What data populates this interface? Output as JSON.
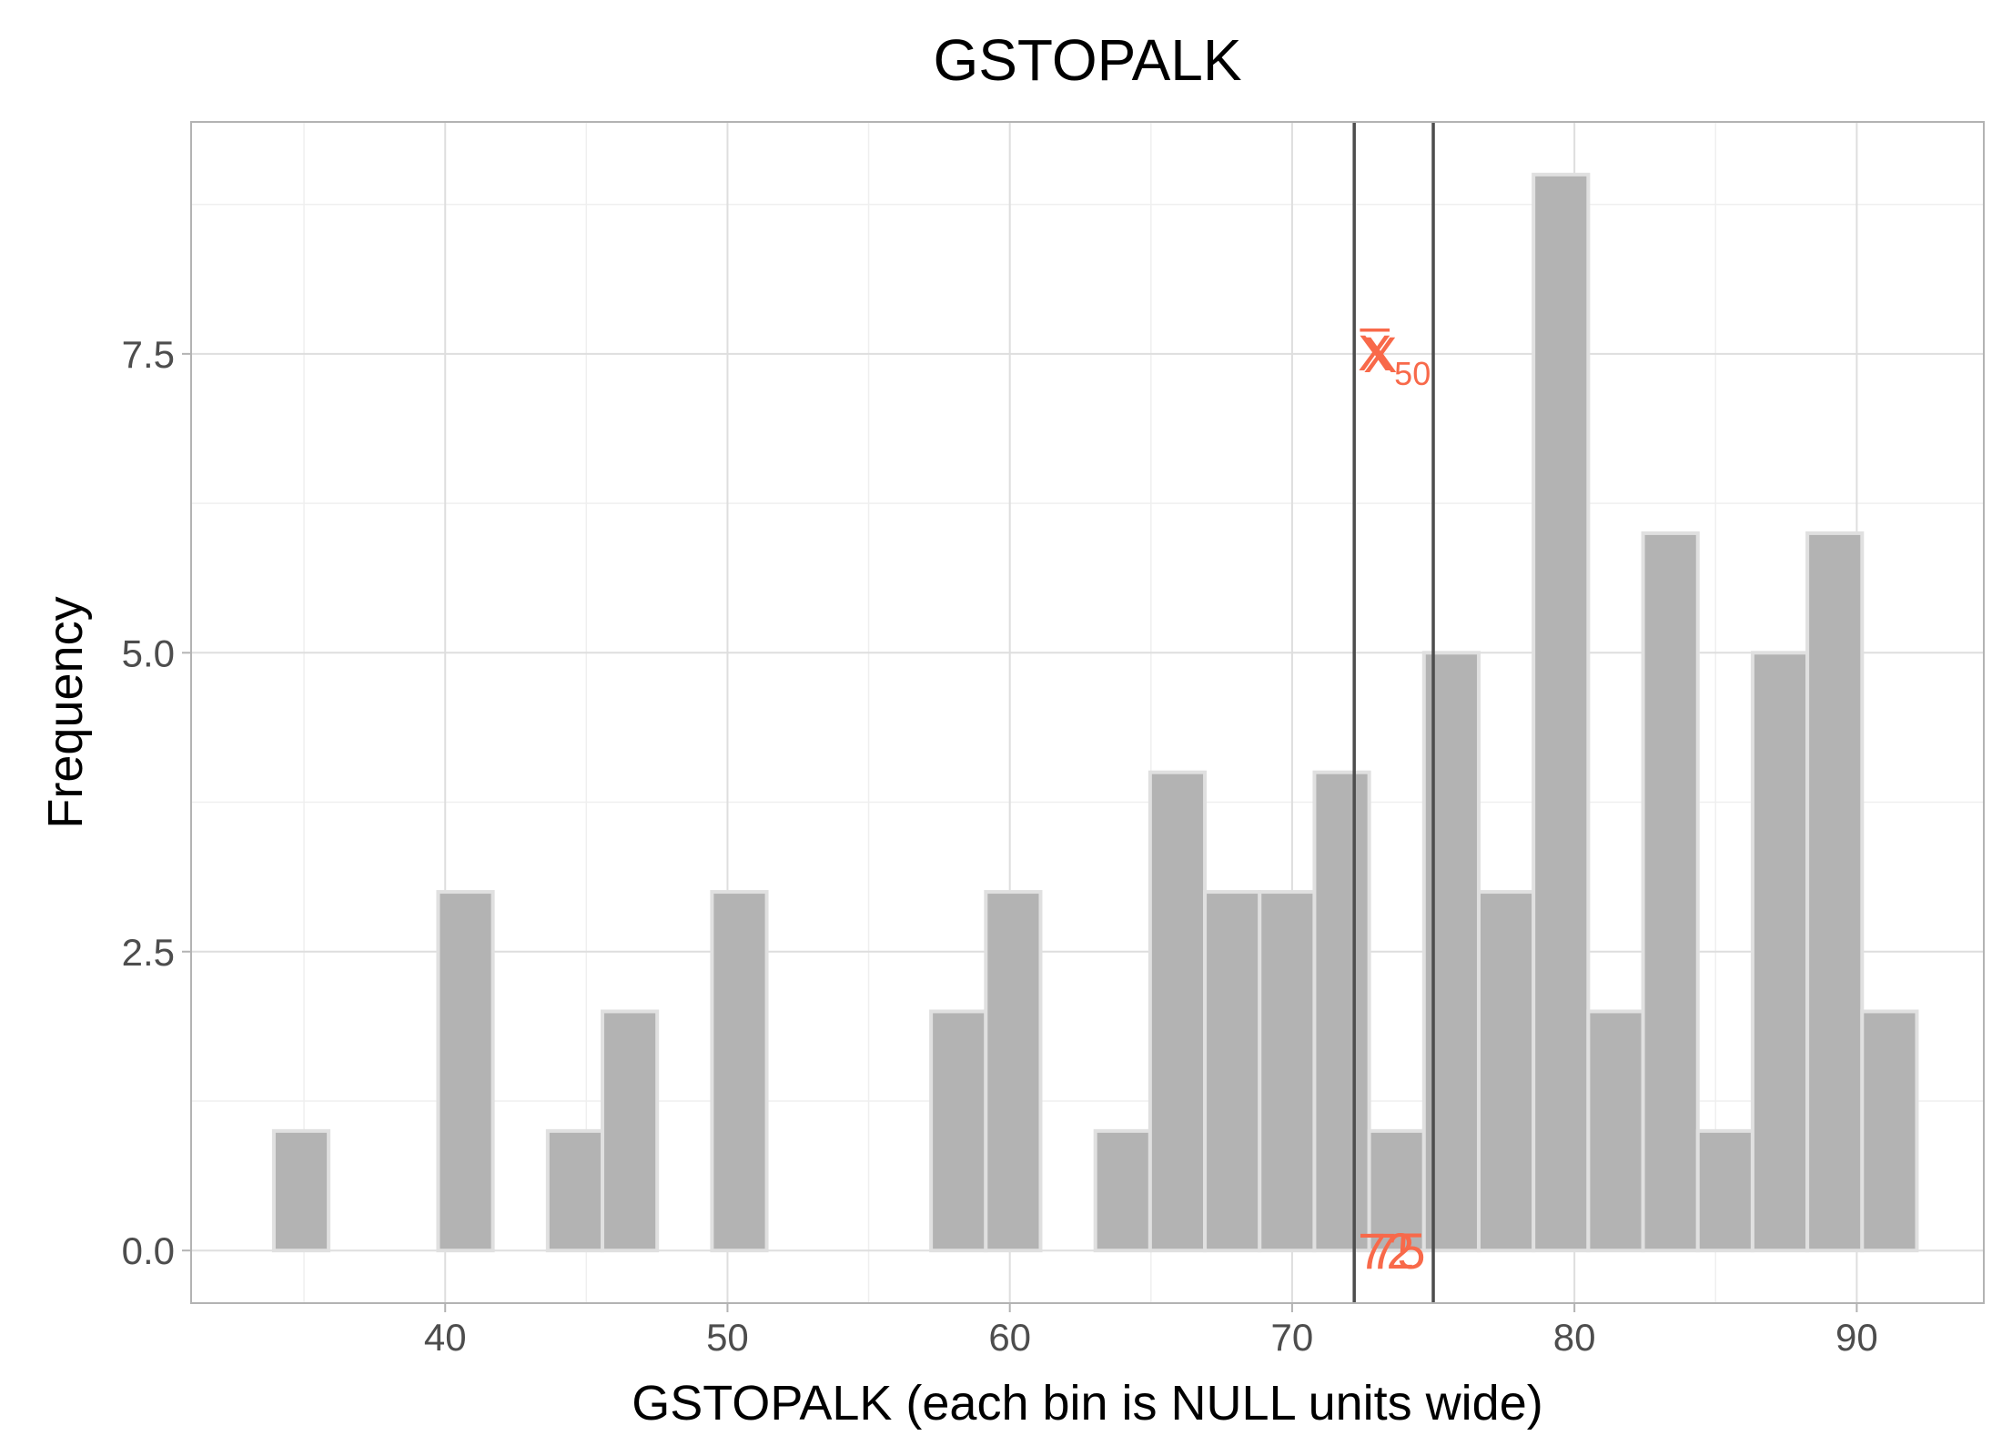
{
  "chart_data": {
    "type": "bar",
    "title": "GSTOPALK",
    "xlabel": "GSTOPALK (each bin is NULL units wide)",
    "ylabel": "Frequency",
    "xlim": [
      31,
      94.5
    ],
    "ylim": [
      -0.44,
      9.44
    ],
    "x_ticks": [
      40,
      50,
      60,
      70,
      80,
      90
    ],
    "x_tick_labels": [
      "40",
      "50",
      "60",
      "70",
      "80",
      "90"
    ],
    "y_ticks": [
      0,
      2.5,
      5,
      7.5
    ],
    "y_tick_labels": [
      "0.0",
      "2.5",
      "5.0",
      "7.5"
    ],
    "bin_width": 1.94,
    "bins": [
      {
        "x": 34.9,
        "count": 1
      },
      {
        "x": 36.84,
        "count": 0
      },
      {
        "x": 38.78,
        "count": 0
      },
      {
        "x": 40.72,
        "count": 3
      },
      {
        "x": 42.66,
        "count": 0
      },
      {
        "x": 44.6,
        "count": 1
      },
      {
        "x": 46.54,
        "count": 2
      },
      {
        "x": 48.48,
        "count": 0
      },
      {
        "x": 50.42,
        "count": 3
      },
      {
        "x": 52.36,
        "count": 0
      },
      {
        "x": 54.3,
        "count": 0
      },
      {
        "x": 56.24,
        "count": 0
      },
      {
        "x": 58.18,
        "count": 2
      },
      {
        "x": 60.12,
        "count": 3
      },
      {
        "x": 62.06,
        "count": 0
      },
      {
        "x": 64.0,
        "count": 1
      },
      {
        "x": 65.94,
        "count": 4
      },
      {
        "x": 67.88,
        "count": 3
      },
      {
        "x": 69.82,
        "count": 3
      },
      {
        "x": 71.76,
        "count": 4
      },
      {
        "x": 73.7,
        "count": 1
      },
      {
        "x": 75.64,
        "count": 5
      },
      {
        "x": 77.58,
        "count": 3
      },
      {
        "x": 79.52,
        "count": 9
      },
      {
        "x": 81.46,
        "count": 2
      },
      {
        "x": 83.4,
        "count": 6
      },
      {
        "x": 85.34,
        "count": 1
      },
      {
        "x": 87.28,
        "count": 5
      },
      {
        "x": 89.22,
        "count": 6
      },
      {
        "x": 91.16,
        "count": 2
      }
    ],
    "vlines": [
      {
        "x": 72.2,
        "label": "72"
      },
      {
        "x": 75.0,
        "label": "75"
      }
    ],
    "mean_label": "X̅",
    "median_label": "X",
    "median_subscript": "50",
    "annotation_y": 7.5,
    "colors": {
      "bar_fill": "#b3b3b3",
      "bar_stroke": "#e0e0e0",
      "vline": "#4d4d4d",
      "annotation": "#f8694a",
      "grid_major": "#dedede",
      "grid_minor": "#efefef",
      "panel_border": "#b3b3b3"
    },
    "grid": true,
    "legend": "none"
  }
}
